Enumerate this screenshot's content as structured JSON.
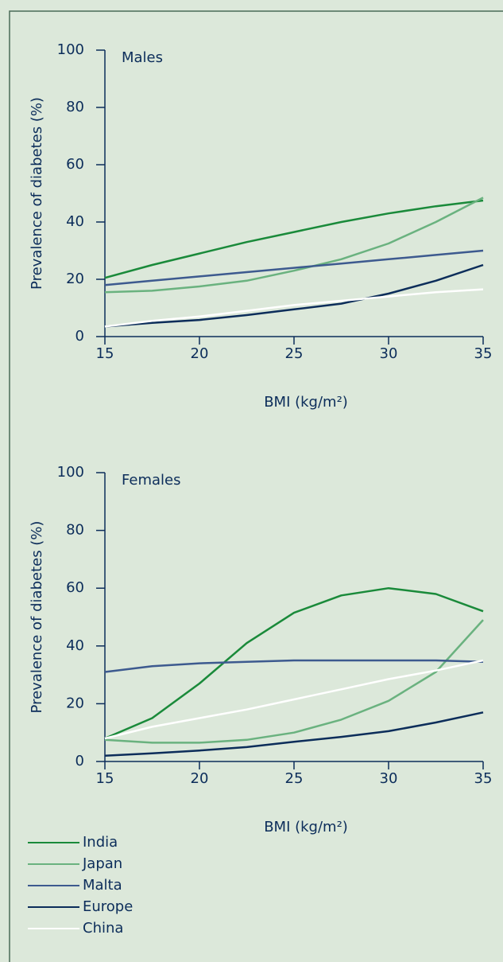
{
  "chart_data": [
    {
      "type": "line",
      "title": "Males",
      "xlabel": "BMI (kg/m²)",
      "ylabel": "Prevalence of diabetes (%)",
      "x": [
        15,
        17.5,
        20,
        22.5,
        25,
        27.5,
        30,
        32.5,
        35
      ],
      "xlim": [
        15,
        35
      ],
      "xticks": [
        15,
        20,
        25,
        30,
        35
      ],
      "ylim": [
        0,
        100
      ],
      "yticks": [
        0,
        20,
        40,
        60,
        80,
        100
      ],
      "series": [
        {
          "color": "#1a8a3a",
          "values": [
            20.5,
            25,
            29,
            33,
            36.5,
            40,
            43,
            45.5,
            47.5
          ]
        },
        {
          "color": "#6ab27f",
          "values": [
            15.5,
            16,
            17.5,
            19.5,
            23,
            27,
            32.5,
            40,
            48.5
          ]
        },
        {
          "color": "#3d5a8f",
          "values": [
            18,
            19.5,
            21,
            22.5,
            24,
            25.5,
            27,
            28.5,
            30
          ]
        },
        {
          "color": "#0c2d5a",
          "values": [
            3.5,
            4.8,
            5.8,
            7.5,
            9.5,
            11.5,
            15,
            19.5,
            25
          ]
        },
        {
          "color": "#ffffff",
          "values": [
            3.5,
            5.5,
            7,
            9,
            11,
            12.5,
            14,
            15.5,
            16.5
          ]
        }
      ]
    },
    {
      "type": "line",
      "title": "Females",
      "xlabel": "BMI (kg/m²)",
      "ylabel": "Prevalence of diabetes (%)",
      "x": [
        15,
        17.5,
        20,
        22.5,
        25,
        27.5,
        30,
        32.5,
        35
      ],
      "xlim": [
        15,
        35
      ],
      "xticks": [
        15,
        20,
        25,
        30,
        35
      ],
      "ylim": [
        0,
        100
      ],
      "yticks": [
        0,
        20,
        40,
        60,
        80,
        100
      ],
      "series": [
        {
          "name": "India",
          "color": "#1a8a3a",
          "values": [
            8,
            15,
            27,
            41,
            51.5,
            57.5,
            60,
            58,
            52
          ]
        },
        {
          "name": "Japan",
          "color": "#6ab27f",
          "values": [
            7.5,
            6.5,
            6.5,
            7.5,
            10,
            14.5,
            21,
            31,
            49
          ]
        },
        {
          "name": "Malta",
          "color": "#3d5a8f",
          "values": [
            31,
            33,
            34,
            34.5,
            35,
            35,
            35,
            35,
            34.5
          ]
        },
        {
          "name": "Europe",
          "color": "#0c2d5a",
          "values": [
            2,
            2.8,
            3.8,
            5,
            6.8,
            8.5,
            10.5,
            13.5,
            17
          ]
        },
        {
          "name": "China",
          "color": "#ffffff",
          "values": [
            8,
            12,
            15,
            18,
            21.5,
            25,
            28.5,
            31.5,
            35
          ]
        }
      ]
    }
  ]
}
